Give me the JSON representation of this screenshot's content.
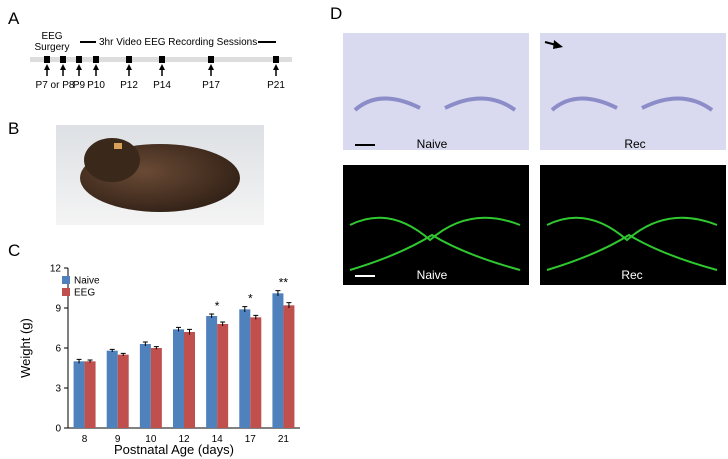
{
  "panels": {
    "a": {
      "label": "A",
      "surgery": [
        "EEG",
        "Surgery"
      ],
      "sessions": "3hr Video EEG Recording Sessions",
      "days": [
        "P7 or P8",
        "P9",
        "P10",
        "P12",
        "P14",
        "P17",
        "P21"
      ]
    },
    "b": {
      "label": "B"
    },
    "c": {
      "label": "C"
    },
    "d": {
      "label": "D",
      "top_labels": [
        "Naive",
        "Rec"
      ],
      "bottom_labels": [
        "Naive",
        "Rec"
      ]
    }
  },
  "chart_data": {
    "type": "bar",
    "x_label": "Postnatal Age (days)",
    "y_label": "Weight (g)",
    "categories": [
      "8",
      "9",
      "10",
      "12",
      "14",
      "17",
      "21"
    ],
    "series": [
      {
        "name": "Naive",
        "color": "#4f81bd",
        "values": [
          5.0,
          5.8,
          6.3,
          7.4,
          8.4,
          8.9,
          10.1
        ],
        "errors": [
          0.15,
          0.1,
          0.15,
          0.15,
          0.15,
          0.2,
          0.2
        ]
      },
      {
        "name": "EEG",
        "color": "#c0504d",
        "values": [
          5.0,
          5.5,
          6.0,
          7.2,
          7.8,
          8.3,
          9.2
        ],
        "errors": [
          0.1,
          0.1,
          0.1,
          0.2,
          0.15,
          0.15,
          0.2
        ]
      }
    ],
    "significance": [
      null,
      null,
      null,
      null,
      "*",
      "*",
      "**"
    ],
    "ylim": [
      0,
      12
    ],
    "yticks": [
      0,
      3,
      6,
      9,
      12
    ],
    "legend": "upper-left"
  }
}
